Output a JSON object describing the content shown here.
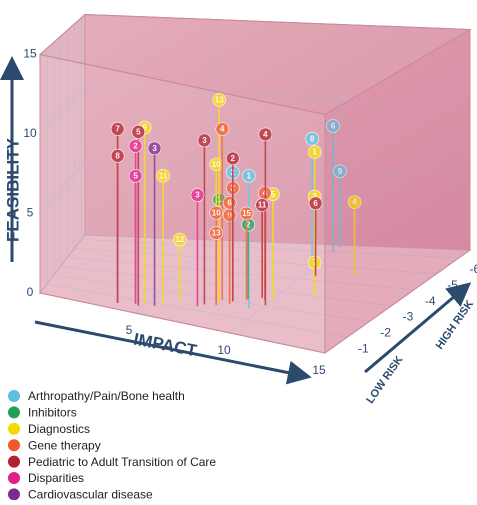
{
  "chart_data": {
    "type": "scatter3d",
    "x_label": "IMPACT",
    "y_label": "FEASIBILITY",
    "z_label_low": "LOW RISK",
    "z_label_high": "HIGH RISK",
    "xlim": [
      0,
      15
    ],
    "ylim": [
      0,
      15
    ],
    "zlim": [
      0,
      -6.5
    ],
    "xticks": [
      5,
      10,
      15
    ],
    "yticks": [
      0,
      5,
      10,
      15
    ],
    "zticks": [
      -1,
      -2,
      -3,
      -4,
      -5,
      -6
    ],
    "series": [
      {
        "name": "Arthropathy/Pain/Bone health",
        "color": "#5bc0e0",
        "x": [
          10,
          9.5,
          10,
          9.5,
          8.5
        ],
        "y": [
          8.5,
          8,
          5.1,
          8.5,
          8.3
        ],
        "z": [
          -6,
          -5.5,
          -6.4,
          -1.7,
          -2
        ],
        "labels": [
          6,
          8,
          9,
          1,
          2
        ]
      },
      {
        "name": "Inhibitors",
        "color": "#1fa05a",
        "x": [
          9,
          8
        ],
        "y": [
          4.8,
          6.6
        ],
        "z": [
          -2.3,
          -1.8
        ],
        "labels": [
          2,
          1
        ]
      },
      {
        "name": "Diagnostics",
        "color": "#f5d800",
        "x": [
          5,
          5.8,
          8,
          6.3,
          10,
          11.5,
          11.5,
          11.5,
          12,
          8
        ],
        "y": [
          11.2,
          8.2,
          13,
          3.9,
          6.8,
          9.4,
          6.5,
          2.2,
          4.9,
          9
        ],
        "z": [
          -0.8,
          -1,
          -1.8,
          -1.5,
          -2.5,
          -3,
          -3,
          -3,
          -4.5,
          -1.6
        ],
        "labels": [
          9,
          11,
          13,
          12,
          5,
          1,
          3,
          7,
          4,
          10
        ]
      },
      {
        "name": "Gene therapy",
        "color": "#f05a28",
        "x": [
          8,
          8.5,
          8,
          8.5,
          8,
          8.5,
          9,
          9.7
        ],
        "y": [
          11,
          7.3,
          5.9,
          5.7,
          4.6,
          6.5,
          5.6,
          6.9
        ],
        "z": [
          -2,
          -2,
          -1.6,
          -1.8,
          -1.6,
          -1.8,
          -2.2,
          -2.4
        ],
        "labels": [
          4,
          2,
          10,
          9,
          13,
          6,
          15,
          4
        ]
      },
      {
        "name": "Pediatric to Adult Transition of Care",
        "color": "#b5202e",
        "x": [
          3.8,
          3.8,
          4.8,
          7.5,
          10,
          8.5,
          10.5,
          9.5
        ],
        "y": [
          11,
          9.3,
          11,
          10.5,
          11,
          9.2,
          4.8,
          6
        ],
        "z": [
          -0.5,
          -0.5,
          -0.6,
          -1.5,
          -2.06,
          -2,
          -4.3,
          -2.5
        ],
        "labels": [
          7,
          8,
          5,
          3,
          4,
          2,
          6,
          11
        ]
      },
      {
        "name": "Disparities",
        "color": "#e0208a",
        "x": [
          4.6,
          4.6,
          7.3
        ],
        "y": [
          10,
          8.1,
          7.1
        ],
        "z": [
          -0.7,
          -0.7,
          -1.3
        ],
        "labels": [
          2,
          5,
          3
        ]
      },
      {
        "name": "Cardiovascular disease",
        "color": "#7b2d8e",
        "x": [
          5.5
        ],
        "y": [
          10
        ],
        "z": [
          -0.8
        ],
        "labels": [
          3
        ]
      }
    ]
  }
}
